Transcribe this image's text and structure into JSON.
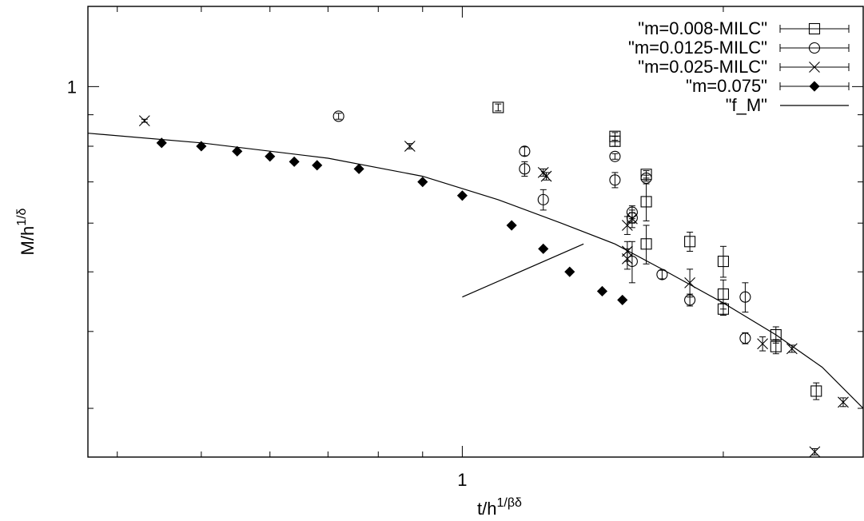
{
  "chart_data": {
    "type": "scatter",
    "xscale": "log",
    "yscale": "log",
    "xlabel": {
      "base": "t/h",
      "sup": "1/βδ"
    },
    "ylabel": {
      "base": "M/h",
      "sup": "1/δ"
    },
    "xlim": [
      0.37,
      2.9
    ],
    "ylim": [
      0.25,
      1.35
    ],
    "xticks": [
      {
        "value": 1,
        "label": "1"
      }
    ],
    "yticks": [
      {
        "value": 1,
        "label": "1"
      }
    ],
    "grid": false,
    "legend_position": "top-right",
    "series": [
      {
        "name": "\"m=0.008-MILC\"",
        "marker": "square",
        "points": [
          {
            "x": 1.1,
            "y": 0.925,
            "err": 0.012
          },
          {
            "x": 1.5,
            "y": 0.83,
            "err": 0.012
          },
          {
            "x": 1.5,
            "y": 0.815,
            "err": 0.015
          },
          {
            "x": 1.63,
            "y": 0.72,
            "err": 0.01
          },
          {
            "x": 1.63,
            "y": 0.65,
            "err": 0.045
          },
          {
            "x": 1.63,
            "y": 0.555,
            "err": 0.04
          },
          {
            "x": 1.83,
            "y": 0.56,
            "err": 0.02
          },
          {
            "x": 2.0,
            "y": 0.52,
            "err": 0.03
          },
          {
            "x": 2.0,
            "y": 0.46,
            "err": 0.025
          },
          {
            "x": 2.0,
            "y": 0.435,
            "err": 0.01
          },
          {
            "x": 2.3,
            "y": 0.395,
            "err": 0.012
          },
          {
            "x": 2.3,
            "y": 0.378,
            "err": 0.01
          },
          {
            "x": 2.56,
            "y": 0.32,
            "err": 0.01
          }
        ]
      },
      {
        "name": "\"m=0.0125-MILC\"",
        "marker": "circle",
        "points": [
          {
            "x": 0.72,
            "y": 0.895,
            "err": 0.01
          },
          {
            "x": 1.18,
            "y": 0.785,
            "err": 0.013
          },
          {
            "x": 1.18,
            "y": 0.735,
            "err": 0.02
          },
          {
            "x": 1.24,
            "y": 0.655,
            "err": 0.025
          },
          {
            "x": 1.5,
            "y": 0.77,
            "err": 0.008
          },
          {
            "x": 1.5,
            "y": 0.705,
            "err": 0.02
          },
          {
            "x": 1.63,
            "y": 0.71,
            "err": 0.008
          },
          {
            "x": 1.57,
            "y": 0.625,
            "err": 0.015
          },
          {
            "x": 1.57,
            "y": 0.612,
            "err": 0.012
          },
          {
            "x": 1.57,
            "y": 0.52,
            "err": 0.04
          },
          {
            "x": 1.7,
            "y": 0.495,
            "err": 0.008
          },
          {
            "x": 1.83,
            "y": 0.45,
            "err": 0.01
          },
          {
            "x": 2.12,
            "y": 0.455,
            "err": 0.025
          },
          {
            "x": 2.12,
            "y": 0.39,
            "err": 0.008
          }
        ]
      },
      {
        "name": "\"m=0.025-MILC\"",
        "marker": "cross",
        "points": [
          {
            "x": 0.43,
            "y": 0.88,
            "err": 0.005
          },
          {
            "x": 0.87,
            "y": 0.8,
            "err": 0.008
          },
          {
            "x": 1.24,
            "y": 0.725,
            "err": 0.01
          },
          {
            "x": 1.25,
            "y": 0.715,
            "err": 0.01
          },
          {
            "x": 1.57,
            "y": 0.61,
            "err": 0.02
          },
          {
            "x": 1.55,
            "y": 0.595,
            "err": 0.02
          },
          {
            "x": 1.55,
            "y": 0.54,
            "err": 0.02
          },
          {
            "x": 1.55,
            "y": 0.525,
            "err": 0.02
          },
          {
            "x": 1.83,
            "y": 0.48,
            "err": 0.025
          },
          {
            "x": 2.22,
            "y": 0.382,
            "err": 0.01
          },
          {
            "x": 2.4,
            "y": 0.375,
            "err": 0.005
          },
          {
            "x": 2.75,
            "y": 0.307,
            "err": 0.005
          },
          {
            "x": 2.55,
            "y": 0.255,
            "err": 0.003
          }
        ]
      },
      {
        "name": "\"m=0.075\"",
        "marker": "diamond-filled",
        "points": [
          {
            "x": 0.45,
            "y": 0.81
          },
          {
            "x": 0.5,
            "y": 0.8
          },
          {
            "x": 0.55,
            "y": 0.785
          },
          {
            "x": 0.6,
            "y": 0.77
          },
          {
            "x": 0.64,
            "y": 0.755
          },
          {
            "x": 0.68,
            "y": 0.745
          },
          {
            "x": 0.76,
            "y": 0.735
          },
          {
            "x": 0.9,
            "y": 0.7
          },
          {
            "x": 1.0,
            "y": 0.665
          },
          {
            "x": 1.14,
            "y": 0.595
          },
          {
            "x": 1.24,
            "y": 0.545
          },
          {
            "x": 1.33,
            "y": 0.5
          },
          {
            "x": 1.45,
            "y": 0.465
          },
          {
            "x": 1.53,
            "y": 0.45
          }
        ]
      },
      {
        "name": "\"f_M\"",
        "marker": "line",
        "points": [
          {
            "x": 0.37,
            "y": 0.84
          },
          {
            "x": 0.5,
            "y": 0.81
          },
          {
            "x": 0.7,
            "y": 0.765
          },
          {
            "x": 0.9,
            "y": 0.715
          },
          {
            "x": 1.1,
            "y": 0.655
          },
          {
            "x": 1.3,
            "y": 0.6
          },
          {
            "x": 1.5,
            "y": 0.555
          },
          {
            "x": 1.7,
            "y": 0.505
          },
          {
            "x": 2.0,
            "y": 0.445
          },
          {
            "x": 2.3,
            "y": 0.395
          },
          {
            "x": 2.6,
            "y": 0.35
          },
          {
            "x": 2.9,
            "y": 0.3
          }
        ],
        "extra_segment": [
          {
            "x": 1.0,
            "y": 0.455
          },
          {
            "x": 1.38,
            "y": 0.555
          }
        ]
      }
    ]
  }
}
